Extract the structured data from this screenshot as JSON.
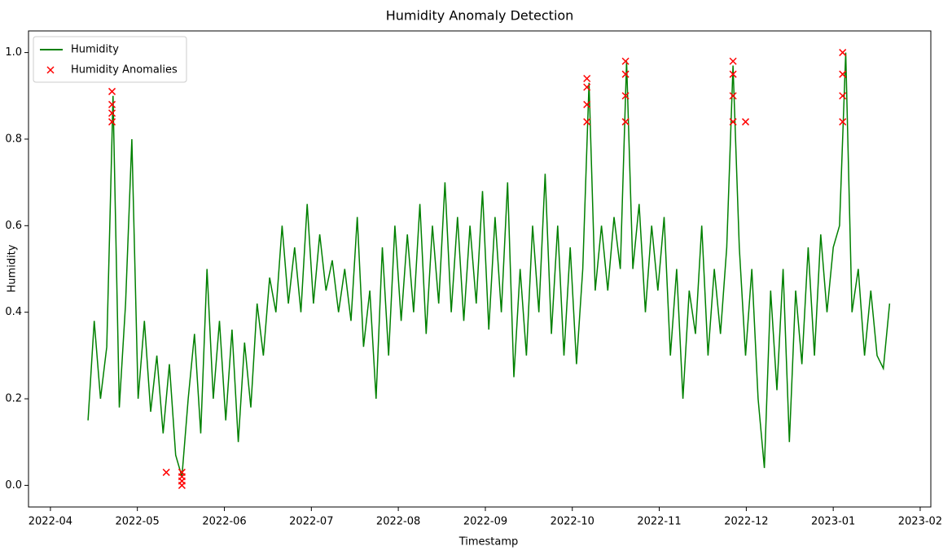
{
  "chart_data": {
    "type": "line",
    "title": "Humidity Anomaly Detection",
    "xlabel": "Timestamp",
    "ylabel": "Humidity",
    "legend": "upper left",
    "xlim": [
      2022.229,
      2023.0935
    ],
    "xticks": [
      {
        "value": 2022.25,
        "label": "2022-04"
      },
      {
        "value": 2022.3333,
        "label": "2022-05"
      },
      {
        "value": 2022.4167,
        "label": "2022-06"
      },
      {
        "value": 2022.5,
        "label": "2022-07"
      },
      {
        "value": 2022.5833,
        "label": "2022-08"
      },
      {
        "value": 2022.6667,
        "label": "2022-09"
      },
      {
        "value": 2022.75,
        "label": "2022-10"
      },
      {
        "value": 2022.8333,
        "label": "2022-11"
      },
      {
        "value": 2022.9167,
        "label": "2022-12"
      },
      {
        "value": 2023.0,
        "label": "2023-01"
      },
      {
        "value": 2023.0833,
        "label": "2023-02"
      }
    ],
    "ylim": [
      -0.05,
      1.05
    ],
    "yticks": [
      {
        "value": 0,
        "label": "0.0"
      },
      0.2,
      0.4,
      0.6,
      0.8,
      {
        "value": 1,
        "label": "1.0"
      }
    ],
    "series": [
      {
        "name": "Humidity",
        "type": "line",
        "color": "#008000",
        "x": [
          2022.286,
          2022.292,
          2022.298,
          2022.304,
          2022.31,
          2022.316,
          2022.322,
          2022.328,
          2022.334,
          2022.34,
          2022.346,
          2022.352,
          2022.358,
          2022.364,
          2022.37,
          2022.376,
          2022.382,
          2022.388,
          2022.394,
          2022.4,
          2022.406,
          2022.412,
          2022.418,
          2022.424,
          2022.43,
          2022.436,
          2022.442,
          2022.448,
          2022.454,
          2022.46,
          2022.466,
          2022.472,
          2022.478,
          2022.484,
          2022.49,
          2022.496,
          2022.502,
          2022.508,
          2022.514,
          2022.52,
          2022.526,
          2022.532,
          2022.538,
          2022.544,
          2022.55,
          2022.556,
          2022.562,
          2022.568,
          2022.574,
          2022.58,
          2022.586,
          2022.592,
          2022.598,
          2022.604,
          2022.61,
          2022.616,
          2022.622,
          2022.628,
          2022.634,
          2022.64,
          2022.646,
          2022.652,
          2022.658,
          2022.664,
          2022.67,
          2022.676,
          2022.682,
          2022.688,
          2022.694,
          2022.7,
          2022.706,
          2022.712,
          2022.718,
          2022.724,
          2022.73,
          2022.736,
          2022.742,
          2022.748,
          2022.754,
          2022.76,
          2022.766,
          2022.772,
          2022.778,
          2022.784,
          2022.79,
          2022.796,
          2022.802,
          2022.808,
          2022.814,
          2022.82,
          2022.826,
          2022.832,
          2022.838,
          2022.844,
          2022.85,
          2022.856,
          2022.862,
          2022.868,
          2022.874,
          2022.88,
          2022.886,
          2022.892,
          2022.898,
          2022.904,
          2022.91,
          2022.916,
          2022.922,
          2022.928,
          2022.934,
          2022.94,
          2022.946,
          2022.952,
          2022.958,
          2022.964,
          2022.97,
          2022.976,
          2022.982,
          2022.988,
          2022.994,
          2023.0,
          2023.006,
          2023.012,
          2023.018,
          2023.024,
          2023.03,
          2023.036,
          2023.042,
          2023.048,
          2023.054
        ],
        "values": [
          0.15,
          0.38,
          0.2,
          0.32,
          0.9,
          0.18,
          0.42,
          0.8,
          0.2,
          0.38,
          0.17,
          0.3,
          0.12,
          0.28,
          0.07,
          0.02,
          0.2,
          0.35,
          0.12,
          0.5,
          0.2,
          0.38,
          0.15,
          0.36,
          0.1,
          0.33,
          0.18,
          0.42,
          0.3,
          0.48,
          0.4,
          0.6,
          0.42,
          0.55,
          0.4,
          0.65,
          0.42,
          0.58,
          0.45,
          0.52,
          0.4,
          0.5,
          0.38,
          0.62,
          0.32,
          0.45,
          0.2,
          0.55,
          0.3,
          0.6,
          0.38,
          0.58,
          0.4,
          0.65,
          0.35,
          0.6,
          0.42,
          0.7,
          0.4,
          0.62,
          0.38,
          0.6,
          0.42,
          0.68,
          0.36,
          0.62,
          0.4,
          0.7,
          0.25,
          0.5,
          0.3,
          0.6,
          0.4,
          0.72,
          0.35,
          0.6,
          0.3,
          0.55,
          0.28,
          0.5,
          0.93,
          0.45,
          0.6,
          0.45,
          0.62,
          0.5,
          0.98,
          0.5,
          0.65,
          0.4,
          0.6,
          0.45,
          0.62,
          0.3,
          0.5,
          0.2,
          0.45,
          0.35,
          0.6,
          0.3,
          0.5,
          0.35,
          0.55,
          0.97,
          0.55,
          0.3,
          0.5,
          0.2,
          0.04,
          0.45,
          0.22,
          0.5,
          0.1,
          0.45,
          0.28,
          0.55,
          0.3,
          0.58,
          0.4,
          0.55,
          0.6,
          1.0,
          0.4,
          0.5,
          0.3,
          0.45,
          0.3,
          0.27,
          0.42
        ]
      },
      {
        "name": "Humidity Anomalies",
        "type": "scatter",
        "color": "#ff0000",
        "x": [
          2022.309,
          2022.309,
          2022.309,
          2022.309,
          2022.361,
          2022.376,
          2022.376,
          2022.376,
          2022.376,
          2022.764,
          2022.764,
          2022.764,
          2022.764,
          2022.801,
          2022.801,
          2022.801,
          2022.801,
          2022.904,
          2022.904,
          2022.904,
          2022.904,
          2022.916,
          2023.009,
          2023.009,
          2023.009,
          2023.009
        ],
        "values": [
          0.84,
          0.86,
          0.88,
          0.91,
          0.03,
          0.0,
          0.01,
          0.02,
          0.03,
          0.84,
          0.88,
          0.92,
          0.94,
          0.84,
          0.9,
          0.95,
          0.98,
          0.84,
          0.9,
          0.95,
          0.98,
          0.84,
          0.84,
          0.9,
          0.95,
          1.0
        ]
      }
    ]
  }
}
